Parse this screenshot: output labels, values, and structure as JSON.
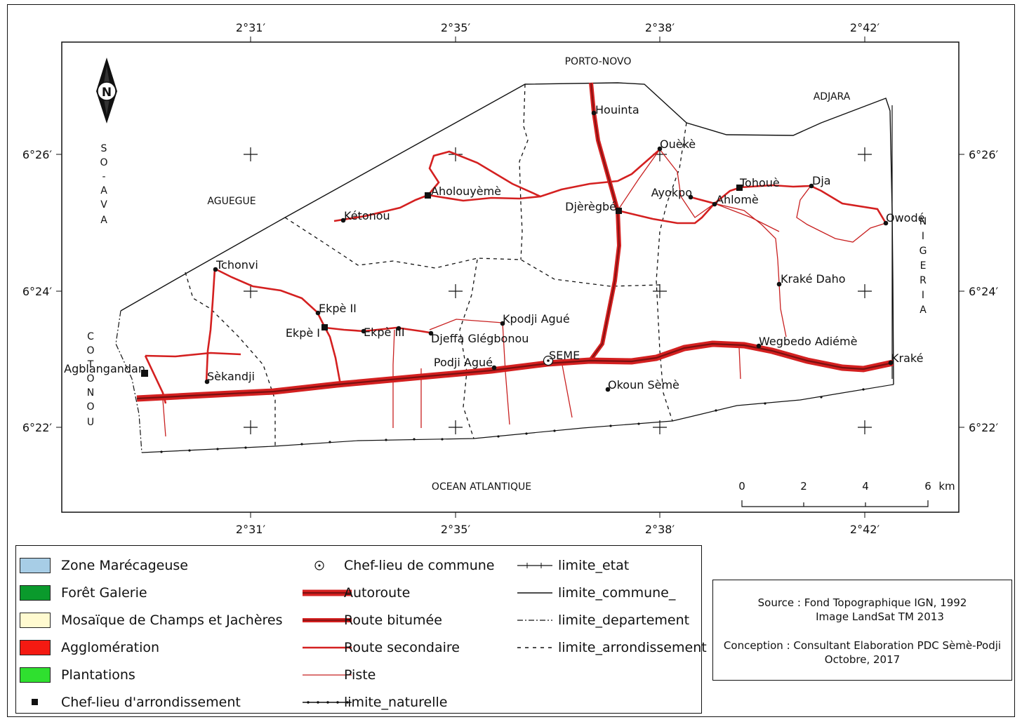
{
  "grid": {
    "lon_labels": [
      "2°31′",
      "2°35′",
      "2°38′",
      "2°42′"
    ],
    "lat_labels": [
      "6°26′",
      "6°24′",
      "6°22′"
    ]
  },
  "map_labels": {
    "porto_novo": "PORTO-NOVO",
    "adjara": "ADJARA",
    "aguegue": "AGUEGUE",
    "ocean": "OCEAN ATLANTIQUE",
    "so_ava": [
      "S",
      "O",
      "-",
      "A",
      "V",
      "A"
    ],
    "cotonou": [
      "C",
      "O",
      "T",
      "O",
      "N",
      "O",
      "U"
    ],
    "nigeria": [
      "N",
      "I",
      "G",
      "E",
      "R",
      "I",
      "A"
    ]
  },
  "north_arrow": {
    "letter": "N",
    "icon": "north-arrow-icon"
  },
  "localities": [
    "Houinta",
    "Ouèkè",
    "Aholouyèmè",
    "Kétonou",
    "Djèrègbé",
    "Ayokpo",
    "Ahlomè",
    "Tohouè",
    "Dja",
    "Owodé",
    "Tchonvi",
    "Ekpè II",
    "Ekpè I",
    "Ekpè III",
    "Kpodji Agué",
    "Djeffa Glégbonou",
    "Podji Agué",
    "SEME",
    "Okoun Sèmè",
    "Wegbedo Adiémè",
    "Kraké",
    "Kraké Daho",
    "Agblangandan",
    "Sèkandji"
  ],
  "scale_bar": {
    "ticks": [
      "0",
      "2",
      "4",
      "6"
    ],
    "unit": "km"
  },
  "legend": {
    "land_cover": [
      {
        "label": "Zone Marécageuse",
        "color": "#a7cde6"
      },
      {
        "label": "Forêt Galerie",
        "color": "#0a9a2c"
      },
      {
        "label": "Mosaïque de Champs et Jachères",
        "color": "#fffad0"
      },
      {
        "label": "Agglomération",
        "color": "#f41a12"
      },
      {
        "label": "Plantations",
        "color": "#2fe02f"
      },
      {
        "label": "Chef-lieu d'arrondissement",
        "symbol": "black-square"
      }
    ],
    "roads": [
      {
        "label": "Chef-lieu de commune",
        "symbol": "dotted-circle"
      },
      {
        "label": "Autoroute",
        "symbol": "autoroute"
      },
      {
        "label": "Route bitumée",
        "symbol": "route-bitumee"
      },
      {
        "label": "Route secondaire",
        "symbol": "route-secondaire"
      },
      {
        "label": "Piste",
        "symbol": "piste"
      },
      {
        "label": "limite_naturelle",
        "symbol": "limite-naturelle"
      }
    ],
    "limits": [
      {
        "label": "limite_etat",
        "symbol": "limite-etat"
      },
      {
        "label": "limite_commune_",
        "symbol": "limite-commune"
      },
      {
        "label": "limite_departement",
        "symbol": "limite-departement"
      },
      {
        "label": "limite_arrondissement",
        "symbol": "limite-arrondissement"
      }
    ]
  },
  "source": {
    "line1": "Source : Fond Topographique IGN, 1992",
    "line2": "Image LandSat TM 2013",
    "line3": "Conception : Consultant Elaboration PDC Sèmè-Podji",
    "line4": "Octobre, 2017"
  },
  "colors": {
    "road": "#d42020",
    "highway_core": "#8a1010",
    "line": "#111111"
  }
}
